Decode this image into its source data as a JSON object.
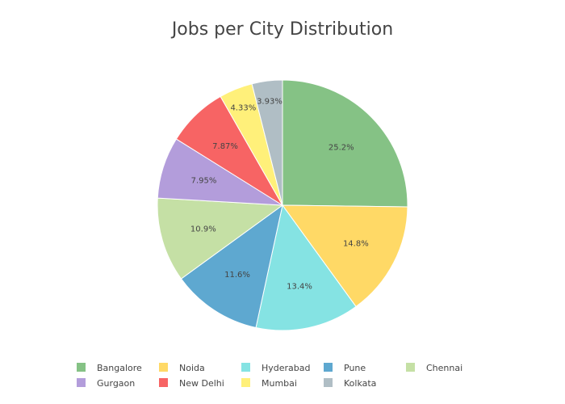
{
  "chart_data": {
    "type": "pie",
    "title": "Jobs per City Distribution",
    "categories": [
      "Bangalore",
      "Noida",
      "Hyderabad",
      "Pune",
      "Chennai",
      "Gurgaon",
      "New Delhi",
      "Mumbai",
      "Kolkata"
    ],
    "values": [
      25.2,
      14.8,
      13.4,
      11.6,
      10.9,
      7.95,
      7.87,
      4.33,
      3.93
    ],
    "value_labels": [
      "25.2%",
      "14.8%",
      "13.4%",
      "11.6%",
      "10.9%",
      "7.95%",
      "7.87%",
      "4.33%",
      "3.93%"
    ],
    "colors": [
      "#85c285",
      "#ffd966",
      "#85e3e3",
      "#5ea8d0",
      "#c5e0a5",
      "#b39ddb",
      "#f76464",
      "#fff07a",
      "#b0bec5"
    ],
    "direction": "clockwise",
    "start": "top",
    "legend_placement": "bottom"
  }
}
